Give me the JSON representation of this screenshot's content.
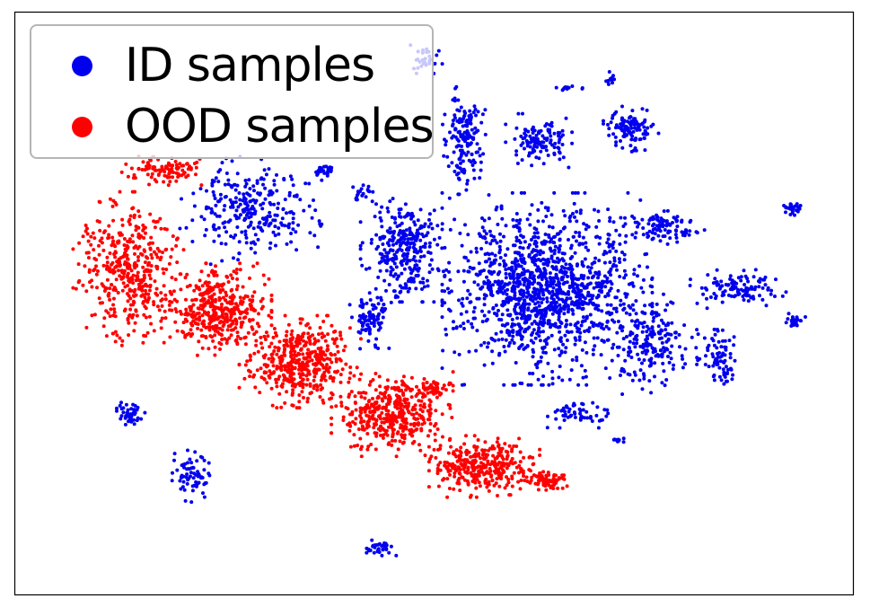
{
  "chart_data": {
    "type": "scatter",
    "title": "",
    "xlabel": "",
    "ylabel": "",
    "grid": false,
    "legend_placement": "top-left",
    "xlim": [
      0,
      100
    ],
    "ylim": [
      0,
      100
    ],
    "series": [
      {
        "name": "ID samples",
        "color": "#0000ee",
        "clusters": [
          {
            "center": [
              63.5,
              52.5
            ],
            "spread": [
              9.5,
              12.5
            ],
            "count": 1300
          },
          {
            "center": [
              46.5,
              59.5
            ],
            "spread": [
              4.0,
              7.0
            ],
            "count": 300
          },
          {
            "center": [
              53.5,
              78.0
            ],
            "spread": [
              2.0,
              7.0
            ],
            "count": 160
          },
          {
            "center": [
              62.5,
              78.0
            ],
            "spread": [
              3.0,
              3.5
            ],
            "count": 120
          },
          {
            "center": [
              73.5,
              80.0
            ],
            "spread": [
              2.5,
              3.0
            ],
            "count": 110
          },
          {
            "center": [
              77.0,
              63.0
            ],
            "spread": [
              4.0,
              2.2
            ],
            "count": 100
          },
          {
            "center": [
              86.5,
              52.5
            ],
            "spread": [
              4.5,
              2.5
            ],
            "count": 110
          },
          {
            "center": [
              76.0,
              43.0
            ],
            "spread": [
              4.0,
              6.5
            ],
            "count": 180
          },
          {
            "center": [
              84.0,
              41.0
            ],
            "spread": [
              2.0,
              4.0
            ],
            "count": 70
          },
          {
            "center": [
              67.5,
              31.0
            ],
            "spread": [
              3.0,
              1.8
            ],
            "count": 55
          },
          {
            "center": [
              28.0,
              66.0
            ],
            "spread": [
              6.5,
              7.0
            ],
            "count": 280
          },
          {
            "center": [
              42.5,
              47.5
            ],
            "spread": [
              2.0,
              4.0
            ],
            "count": 90
          },
          {
            "center": [
              41.5,
              69.0
            ],
            "spread": [
              1.2,
              1.5
            ],
            "count": 20
          },
          {
            "center": [
              37.0,
              73.0
            ],
            "spread": [
              1.0,
              1.0
            ],
            "count": 15
          },
          {
            "center": [
              92.5,
              66.5
            ],
            "spread": [
              1.2,
              1.0
            ],
            "count": 25
          },
          {
            "center": [
              93.0,
              47.0
            ],
            "spread": [
              1.0,
              1.0
            ],
            "count": 25
          },
          {
            "center": [
              85.0,
              37.5
            ],
            "spread": [
              0.8,
              1.0
            ],
            "count": 15
          },
          {
            "center": [
              72.0,
              26.5
            ],
            "spread": [
              0.8,
              0.6
            ],
            "count": 10
          },
          {
            "center": [
              66.0,
              87.0
            ],
            "spread": [
              1.5,
              0.3
            ],
            "count": 12
          },
          {
            "center": [
              71.0,
              88.5
            ],
            "spread": [
              0.6,
              1.0
            ],
            "count": 12
          },
          {
            "center": [
              13.5,
              31.0
            ],
            "spread": [
              1.5,
              1.5
            ],
            "count": 45
          },
          {
            "center": [
              21.0,
              20.5
            ],
            "spread": [
              2.5,
              3.5
            ],
            "count": 70
          },
          {
            "center": [
              43.5,
              8.0
            ],
            "spread": [
              1.5,
              1.0
            ],
            "count": 35
          },
          {
            "center": [
              49.0,
              92.0
            ],
            "spread": [
              1.5,
              2.0
            ],
            "count": 30
          },
          {
            "center": [
              36.5,
              73.0
            ],
            "spread": [
              0.8,
              0.7
            ],
            "count": 12
          }
        ]
      },
      {
        "name": "OOD samples",
        "color": "#ff0000",
        "clusters": [
          {
            "center": [
              13.5,
              56.0
            ],
            "spread": [
              5.0,
              10.0
            ],
            "count": 420
          },
          {
            "center": [
              24.0,
              49.0
            ],
            "spread": [
              5.0,
              6.0
            ],
            "count": 400
          },
          {
            "center": [
              34.0,
              40.0
            ],
            "spread": [
              5.5,
              6.0
            ],
            "count": 450
          },
          {
            "center": [
              45.0,
              31.0
            ],
            "spread": [
              5.5,
              5.5
            ],
            "count": 400
          },
          {
            "center": [
              56.0,
              22.0
            ],
            "spread": [
              5.0,
              4.0
            ],
            "count": 330
          },
          {
            "center": [
              63.5,
              19.5
            ],
            "spread": [
              1.8,
              1.2
            ],
            "count": 80
          },
          {
            "center": [
              49.5,
              35.5
            ],
            "spread": [
              2.5,
              1.5
            ],
            "count": 60
          },
          {
            "center": [
              18.0,
              73.0
            ],
            "spread": [
              4.0,
              2.0
            ],
            "count": 100
          }
        ]
      }
    ]
  }
}
